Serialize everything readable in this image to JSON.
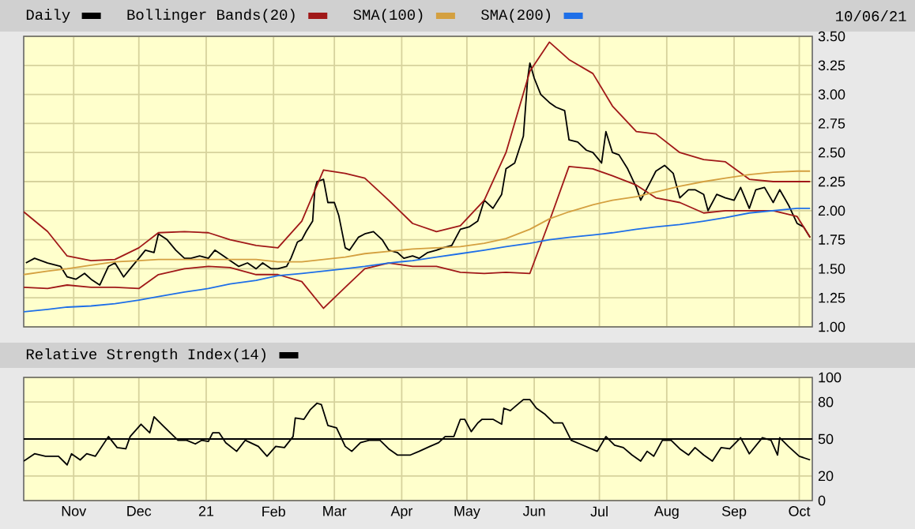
{
  "chart_data": [
    {
      "type": "line",
      "subtitle": "10/06/21",
      "legend": "top",
      "grid": true,
      "tick_labels": "y",
      "xlim": [
        "2020-10-09",
        "2021-10-07"
      ],
      "xticks": [
        {
          "value": "2020-11-01",
          "label": null
        },
        {
          "value": "2020-12-01",
          "label": null
        },
        {
          "value": "2021-01-01",
          "label": null
        },
        {
          "value": "2021-02-01",
          "label": null
        },
        {
          "value": "2021-03-01",
          "label": null
        },
        {
          "value": "2021-04-01",
          "label": null
        },
        {
          "value": "2021-05-01",
          "label": null
        },
        {
          "value": "2021-06-01",
          "label": null
        },
        {
          "value": "2021-07-01",
          "label": null
        },
        {
          "value": "2021-08-01",
          "label": null
        },
        {
          "value": "2021-09-01",
          "label": null
        },
        {
          "value": "2021-10-01",
          "label": null
        }
      ],
      "ylim": [
        1.0,
        3.5
      ],
      "yticks": [
        {
          "value": 1.0,
          "label": "1.00"
        },
        {
          "value": 1.25,
          "label": "1.25"
        },
        {
          "value": 1.5,
          "label": "1.50"
        },
        {
          "value": 1.75,
          "label": "1.75"
        },
        {
          "value": 2.0,
          "label": "2.00"
        },
        {
          "value": 2.25,
          "label": "2.25"
        },
        {
          "value": 2.5,
          "label": "2.50"
        },
        {
          "value": 2.75,
          "label": "2.75"
        },
        {
          "value": 3.0,
          "label": "3.00"
        },
        {
          "value": 3.25,
          "label": "3.25"
        },
        {
          "value": 3.5,
          "label": "3.50"
        }
      ],
      "series": [
        {
          "name": "Daily",
          "color": "#000000",
          "x": [
            "2020-10-10",
            "2020-10-14",
            "2020-10-20",
            "2020-10-26",
            "2020-10-29",
            "2020-11-02",
            "2020-11-06",
            "2020-11-09",
            "2020-11-13",
            "2020-11-17",
            "2020-11-20",
            "2020-11-24",
            "2020-11-27",
            "2020-12-01",
            "2020-12-04",
            "2020-12-08",
            "2020-12-10",
            "2020-12-14",
            "2020-12-18",
            "2020-12-22",
            "2020-12-25",
            "2020-12-29",
            "2021-01-02",
            "2021-01-05",
            "2021-01-09",
            "2021-01-12",
            "2021-01-16",
            "2021-01-20",
            "2021-01-24",
            "2021-01-27",
            "2021-01-31",
            "2021-02-03",
            "2021-02-07",
            "2021-02-09",
            "2021-02-12",
            "2021-02-14",
            "2021-02-16",
            "2021-02-19",
            "2021-02-20",
            "2021-02-21",
            "2021-02-24",
            "2021-02-26",
            "2021-03-01",
            "2021-03-03",
            "2021-03-06",
            "2021-03-08",
            "2021-03-12",
            "2021-03-15",
            "2021-03-19",
            "2021-03-23",
            "2021-03-26",
            "2021-03-30",
            "2021-04-02",
            "2021-04-06",
            "2021-04-09",
            "2021-04-13",
            "2021-04-17",
            "2021-04-20",
            "2021-04-24",
            "2021-04-28",
            "2021-05-02",
            "2021-05-06",
            "2021-05-09",
            "2021-05-13",
            "2021-05-17",
            "2021-05-19",
            "2021-05-23",
            "2021-05-27",
            "2021-05-29",
            "2021-05-30",
            "2021-06-01",
            "2021-06-04",
            "2021-06-08",
            "2021-06-11",
            "2021-06-15",
            "2021-06-17",
            "2021-06-21",
            "2021-06-25",
            "2021-06-28",
            "2021-07-02",
            "2021-07-04",
            "2021-07-07",
            "2021-07-10",
            "2021-07-14",
            "2021-07-18",
            "2021-07-20",
            "2021-07-24",
            "2021-07-27",
            "2021-07-31",
            "2021-08-04",
            "2021-08-07",
            "2021-08-11",
            "2021-08-14",
            "2021-08-18",
            "2021-08-20",
            "2021-08-24",
            "2021-08-28",
            "2021-09-01",
            "2021-09-04",
            "2021-09-08",
            "2021-09-11",
            "2021-09-15",
            "2021-09-19",
            "2021-09-22",
            "2021-09-26",
            "2021-09-30",
            "2021-10-03",
            "2021-10-06"
          ],
          "values": [
            1.55,
            1.59,
            1.55,
            1.52,
            1.43,
            1.41,
            1.46,
            1.41,
            1.36,
            1.52,
            1.55,
            1.43,
            1.5,
            1.59,
            1.66,
            1.64,
            1.8,
            1.75,
            1.66,
            1.59,
            1.59,
            1.61,
            1.59,
            1.66,
            1.61,
            1.57,
            1.52,
            1.55,
            1.5,
            1.55,
            1.5,
            1.5,
            1.52,
            1.59,
            1.73,
            1.75,
            1.82,
            1.91,
            2.18,
            2.25,
            2.27,
            2.07,
            2.07,
            1.96,
            1.68,
            1.66,
            1.77,
            1.8,
            1.82,
            1.75,
            1.66,
            1.64,
            1.59,
            1.61,
            1.59,
            1.64,
            1.66,
            1.68,
            1.7,
            1.84,
            1.86,
            1.91,
            2.09,
            2.02,
            2.14,
            2.36,
            2.41,
            2.64,
            3.14,
            3.27,
            3.14,
            3.0,
            2.93,
            2.89,
            2.86,
            2.61,
            2.59,
            2.52,
            2.5,
            2.41,
            2.68,
            2.5,
            2.48,
            2.36,
            2.2,
            2.09,
            2.23,
            2.34,
            2.39,
            2.32,
            2.11,
            2.18,
            2.18,
            2.14,
            2.0,
            2.14,
            2.11,
            2.09,
            2.2,
            2.02,
            2.18,
            2.2,
            2.07,
            2.18,
            2.05,
            1.89,
            1.86,
            1.77
          ]
        },
        {
          "name": "Bollinger Bands(20)",
          "color": "#a01818",
          "x": [
            "2020-10-09",
            "2020-10-20",
            "2020-10-29",
            "2020-11-09",
            "2020-11-20",
            "2020-12-01",
            "2020-12-10",
            "2020-12-22",
            "2021-01-02",
            "2021-01-12",
            "2021-01-24",
            "2021-02-03",
            "2021-02-14",
            "2021-02-24",
            "2021-03-06",
            "2021-03-15",
            "2021-03-26",
            "2021-04-06",
            "2021-04-17",
            "2021-04-28",
            "2021-05-09",
            "2021-05-19",
            "2021-05-30",
            "2021-06-08",
            "2021-06-17",
            "2021-06-28",
            "2021-07-07",
            "2021-07-18",
            "2021-07-27",
            "2021-08-07",
            "2021-08-18",
            "2021-08-28",
            "2021-09-08",
            "2021-09-19",
            "2021-09-30",
            "2021-10-06"
          ],
          "values": [
            1.99,
            1.82,
            1.61,
            1.57,
            1.58,
            1.68,
            1.81,
            1.82,
            1.81,
            1.75,
            1.7,
            1.68,
            1.91,
            2.35,
            2.32,
            2.28,
            2.09,
            1.89,
            1.82,
            1.87,
            2.09,
            2.5,
            3.2,
            3.45,
            3.3,
            3.18,
            2.9,
            2.68,
            2.66,
            2.5,
            2.44,
            2.42,
            2.27,
            2.25,
            2.25,
            2.25
          ]
        },
        {
          "color": "#a01818",
          "x": [
            "2020-10-09",
            "2020-10-20",
            "2020-10-29",
            "2020-11-09",
            "2020-11-20",
            "2020-12-01",
            "2020-12-10",
            "2020-12-22",
            "2021-01-02",
            "2021-01-12",
            "2021-01-24",
            "2021-02-03",
            "2021-02-14",
            "2021-02-24",
            "2021-03-06",
            "2021-03-15",
            "2021-03-26",
            "2021-04-06",
            "2021-04-17",
            "2021-04-28",
            "2021-05-09",
            "2021-05-19",
            "2021-05-30",
            "2021-06-08",
            "2021-06-17",
            "2021-06-28",
            "2021-07-07",
            "2021-07-18",
            "2021-07-27",
            "2021-08-07",
            "2021-08-18",
            "2021-08-28",
            "2021-09-08",
            "2021-09-19",
            "2021-09-30",
            "2021-10-06"
          ],
          "values": [
            1.34,
            1.33,
            1.36,
            1.34,
            1.34,
            1.33,
            1.45,
            1.5,
            1.52,
            1.51,
            1.45,
            1.45,
            1.39,
            1.16,
            1.34,
            1.5,
            1.55,
            1.52,
            1.52,
            1.47,
            1.46,
            1.47,
            1.46,
            1.91,
            2.38,
            2.36,
            2.3,
            2.22,
            2.11,
            2.07,
            1.98,
            2.0,
            2.0,
            2.0,
            1.95,
            1.77
          ]
        },
        {
          "name": "SMA(100)",
          "color": "#d4a040",
          "x": [
            "2020-10-09",
            "2020-10-20",
            "2020-10-29",
            "2020-11-09",
            "2020-11-20",
            "2020-12-01",
            "2020-12-10",
            "2020-12-22",
            "2021-01-02",
            "2021-01-12",
            "2021-01-24",
            "2021-02-03",
            "2021-02-14",
            "2021-02-24",
            "2021-03-06",
            "2021-03-15",
            "2021-03-26",
            "2021-04-06",
            "2021-04-17",
            "2021-04-28",
            "2021-05-09",
            "2021-05-19",
            "2021-05-30",
            "2021-06-08",
            "2021-06-17",
            "2021-06-28",
            "2021-07-07",
            "2021-07-18",
            "2021-07-27",
            "2021-08-07",
            "2021-08-18",
            "2021-08-28",
            "2021-09-08",
            "2021-09-19",
            "2021-09-30",
            "2021-10-06"
          ],
          "values": [
            1.45,
            1.48,
            1.5,
            1.53,
            1.56,
            1.57,
            1.58,
            1.58,
            1.58,
            1.58,
            1.58,
            1.56,
            1.56,
            1.58,
            1.6,
            1.63,
            1.65,
            1.67,
            1.68,
            1.69,
            1.72,
            1.76,
            1.84,
            1.93,
            1.99,
            2.05,
            2.09,
            2.12,
            2.16,
            2.21,
            2.25,
            2.28,
            2.31,
            2.33,
            2.34,
            2.34
          ]
        },
        {
          "name": "SMA(200)",
          "color": "#1e6fe8",
          "x": [
            "2020-10-09",
            "2020-10-20",
            "2020-10-29",
            "2020-11-09",
            "2020-11-20",
            "2020-12-01",
            "2020-12-10",
            "2020-12-22",
            "2021-01-02",
            "2021-01-12",
            "2021-01-24",
            "2021-02-03",
            "2021-02-14",
            "2021-02-24",
            "2021-03-06",
            "2021-03-15",
            "2021-03-26",
            "2021-04-06",
            "2021-04-17",
            "2021-04-28",
            "2021-05-09",
            "2021-05-19",
            "2021-05-30",
            "2021-06-08",
            "2021-06-17",
            "2021-06-28",
            "2021-07-07",
            "2021-07-18",
            "2021-07-27",
            "2021-08-07",
            "2021-08-18",
            "2021-08-28",
            "2021-09-08",
            "2021-09-19",
            "2021-09-30",
            "2021-10-06"
          ],
          "values": [
            1.13,
            1.15,
            1.17,
            1.18,
            1.2,
            1.23,
            1.26,
            1.3,
            1.33,
            1.37,
            1.4,
            1.44,
            1.46,
            1.48,
            1.5,
            1.52,
            1.55,
            1.57,
            1.6,
            1.63,
            1.66,
            1.69,
            1.72,
            1.75,
            1.77,
            1.79,
            1.81,
            1.84,
            1.86,
            1.88,
            1.91,
            1.94,
            1.98,
            2.0,
            2.02,
            2.02
          ]
        }
      ]
    },
    {
      "type": "line",
      "legend": "top",
      "grid": true,
      "xlim": [
        "2020-10-09",
        "2021-10-07"
      ],
      "xticks": [
        {
          "value": "2020-11-01",
          "label": "Nov"
        },
        {
          "value": "2020-12-01",
          "label": "Dec"
        },
        {
          "value": "2021-01-01",
          "label": "21"
        },
        {
          "value": "2021-02-01",
          "label": "Feb"
        },
        {
          "value": "2021-03-01",
          "label": "Mar"
        },
        {
          "value": "2021-04-01",
          "label": "Apr"
        },
        {
          "value": "2021-05-01",
          "label": "May"
        },
        {
          "value": "2021-06-01",
          "label": "Jun"
        },
        {
          "value": "2021-07-01",
          "label": "Jul"
        },
        {
          "value": "2021-08-01",
          "label": "Aug"
        },
        {
          "value": "2021-09-01",
          "label": "Sep"
        },
        {
          "value": "2021-10-01",
          "label": "Oct"
        }
      ],
      "ylim": [
        0,
        100
      ],
      "yticks": [
        0,
        20,
        50,
        80,
        100
      ],
      "ref_lines": [
        {
          "axis": "y",
          "value": 50
        }
      ],
      "series": [
        {
          "name": "Relative Strength Index(14)",
          "color": "#000000",
          "x": [
            "2020-10-09",
            "2020-10-14",
            "2020-10-19",
            "2020-10-25",
            "2020-10-29",
            "2020-10-31",
            "2020-11-04",
            "2020-11-07",
            "2020-11-11",
            "2020-11-17",
            "2020-11-21",
            "2020-11-25",
            "2020-11-27",
            "2020-12-02",
            "2020-12-06",
            "2020-12-08",
            "2020-12-12",
            "2020-12-19",
            "2020-12-23",
            "2020-12-27",
            "2020-12-30",
            "2021-01-02",
            "2021-01-04",
            "2021-01-07",
            "2021-01-10",
            "2021-01-15",
            "2021-01-19",
            "2021-01-25",
            "2021-01-29",
            "2021-02-02",
            "2021-02-06",
            "2021-02-10",
            "2021-02-11",
            "2021-02-15",
            "2021-02-18",
            "2021-02-21",
            "2021-02-23",
            "2021-02-26",
            "2021-03-02",
            "2021-03-06",
            "2021-03-09",
            "2021-03-13",
            "2021-03-17",
            "2021-03-22",
            "2021-03-26",
            "2021-03-30",
            "2021-04-05",
            "2021-04-09",
            "2021-04-14",
            "2021-04-18",
            "2021-04-21",
            "2021-04-25",
            "2021-04-28",
            "2021-04-30",
            "2021-05-03",
            "2021-05-06",
            "2021-05-08",
            "2021-05-13",
            "2021-05-17",
            "2021-05-18",
            "2021-05-21",
            "2021-05-23",
            "2021-05-27",
            "2021-05-30",
            "2021-06-02",
            "2021-06-06",
            "2021-06-10",
            "2021-06-14",
            "2021-06-18",
            "2021-06-22",
            "2021-06-26",
            "2021-06-30",
            "2021-07-04",
            "2021-07-08",
            "2021-07-12",
            "2021-07-16",
            "2021-07-20",
            "2021-07-23",
            "2021-07-26",
            "2021-07-30",
            "2021-08-03",
            "2021-08-07",
            "2021-08-11",
            "2021-08-14",
            "2021-08-18",
            "2021-08-22",
            "2021-08-26",
            "2021-08-30",
            "2021-09-04",
            "2021-09-08",
            "2021-09-14",
            "2021-09-18",
            "2021-09-21",
            "2021-09-22",
            "2021-09-26",
            "2021-10-01",
            "2021-10-06"
          ],
          "values": [
            32,
            38,
            36,
            36,
            29,
            38,
            33,
            38,
            36,
            52,
            43,
            42,
            52,
            62,
            55,
            68,
            61,
            49,
            49,
            46,
            49,
            48,
            55,
            55,
            47,
            40,
            49,
            44,
            36,
            44,
            43,
            52,
            67,
            66,
            74,
            79,
            78,
            61,
            59,
            44,
            40,
            47,
            49,
            49,
            42,
            37,
            37,
            40,
            44,
            47,
            52,
            52,
            66,
            66,
            56,
            63,
            66,
            66,
            62,
            75,
            73,
            76,
            82,
            82,
            75,
            70,
            63,
            63,
            49,
            46,
            43,
            40,
            52,
            45,
            43,
            37,
            32,
            40,
            36,
            49,
            49,
            42,
            37,
            43,
            37,
            32,
            43,
            42,
            51,
            38,
            51,
            49,
            37,
            51,
            44,
            36,
            33
          ]
        }
      ]
    }
  ]
}
